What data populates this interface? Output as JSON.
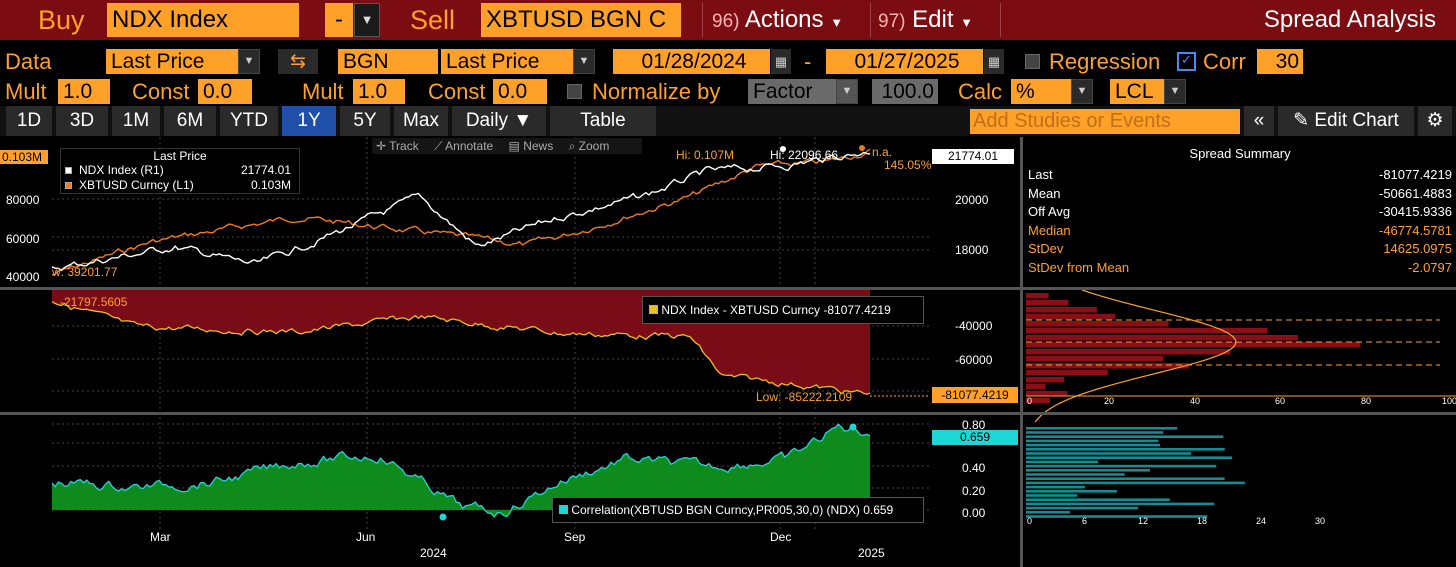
{
  "topbar": {
    "buy_label": "Buy",
    "buy_ticker": "NDX Index",
    "dash": "-",
    "sell_label": "Sell",
    "sell_ticker": "XBTUSD BGN C",
    "actions_num": "96)",
    "actions_label": "Actions",
    "edit_num": "97)",
    "edit_label": "Edit",
    "title": "Spread Analysis"
  },
  "row1": {
    "data_label": "Data",
    "field1": "Last Price",
    "source": "BGN",
    "field2": "Last Price",
    "date_from": "01/28/2024",
    "dash": "-",
    "date_to": "01/27/2025",
    "regression_label": "Regression",
    "corr_label": "Corr",
    "corr_window": "30"
  },
  "row2": {
    "mult_label": "Mult",
    "mult1": "1.0",
    "const_label": "Const",
    "const1": "0.0",
    "mult2": "1.0",
    "const2": "0.0",
    "normalize_label": "Normalize by",
    "normalize_value": "Factor",
    "factor": "100.0",
    "calc_label": "Calc",
    "calc_value": "%",
    "lcl_value": "LCL"
  },
  "tabs": [
    "1D",
    "3D",
    "1M",
    "6M",
    "YTD",
    "1Y",
    "5Y",
    "Max"
  ],
  "active_tab": "1Y",
  "daily_label": "Daily ▼",
  "table_label": "Table",
  "studies_placeholder": "Add Studies or Events",
  "edit_chart_label": "Edit Chart",
  "chart_toolbar": [
    "Track",
    "Annotate",
    "News",
    "Zoom"
  ],
  "colors": {
    "orange": "#ffa028",
    "topbar": "#7b0d12",
    "spread_fill": "#7a0c18",
    "corr_fill": "#0f8a1c",
    "corr_line": "#1fd6d6",
    "ndx_line": "#ffffff",
    "btc_line": "#f07a1a"
  },
  "price_panel": {
    "legend_title": "Last Price",
    "legend": [
      {
        "name": "NDX Index  (R1)",
        "value": "21774.01"
      },
      {
        "name": "XBTUSD Curncy  (L1)",
        "value": "0.103M"
      }
    ],
    "left_ticks": [
      "80000",
      "60000",
      "40000"
    ],
    "left_current": "0.103M",
    "right_ticks": [
      "20000",
      "18000"
    ],
    "right_current": "21774.01",
    "hi_orange": "Hi: 0.107M",
    "hi_white": "Hi: 22096.66",
    "na_label": "n.a.",
    "pct_label": "145.05%",
    "low_label": "w: 39201.77"
  },
  "spread_panel": {
    "legend": "NDX Index - XBTUSD Curncy -81077.4219",
    "start_label": "-21797.5605",
    "low_label": "Low: -85222.2109",
    "current": "-81077.4219",
    "right_ticks": [
      "-40000",
      "-60000",
      "-80000"
    ],
    "hist_ticks": [
      "0",
      "20",
      "40",
      "60",
      "80",
      "100"
    ]
  },
  "corr_panel": {
    "legend": "Correlation(XBTUSD BGN Curncy,PR005,30,0) (NDX) 0.659",
    "current": "0.659",
    "right_ticks": [
      "0.80",
      "0.60",
      "0.40",
      "0.20",
      "0.00"
    ],
    "hist_ticks": [
      "0",
      "6",
      "12",
      "18",
      "24",
      "30"
    ]
  },
  "x_axis": {
    "months": [
      "Mar",
      "Jun",
      "Sep",
      "Dec"
    ],
    "years": [
      "2024",
      "2025"
    ]
  },
  "summary": {
    "title": "Spread Summary",
    "rows": [
      {
        "k": "Last",
        "v": "-81077.4219",
        "color": "#ffffff"
      },
      {
        "k": "Mean",
        "v": "-50661.4883",
        "color": "#ffffff"
      },
      {
        "k": "Off Avg",
        "v": "-30415.9336",
        "color": "#ffffff"
      },
      {
        "k": "Median",
        "v": "-46774.5781",
        "color": "#ffa028"
      },
      {
        "k": "StDev",
        "v": "14625.0975",
        "color": "#ffa028"
      },
      {
        "k": "StDev from Mean",
        "v": "-2.0797",
        "color": "#ffa028"
      }
    ]
  }
}
